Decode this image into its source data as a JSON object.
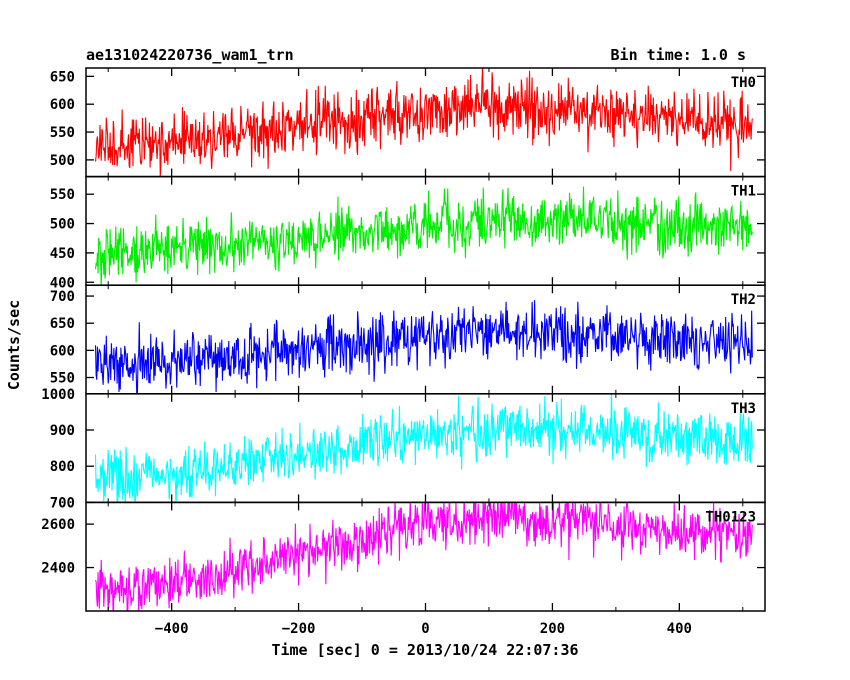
{
  "chart_data": {
    "type": "line",
    "title": "ae131024220736_wam1_trn",
    "subtitle": "Bin time: 1.0 s",
    "xlabel": "Time [sec] 0 = 2013/10/24 22:07:36",
    "ylabel": "Counts/sec",
    "xlim": [
      -535,
      535
    ],
    "x_ticks": [
      -400,
      -200,
      0,
      200,
      400
    ],
    "x_tick_labels": [
      "−400",
      "−200",
      "0",
      "200",
      "400"
    ],
    "x_range": [
      -520,
      515
    ],
    "bin_time": 1.0,
    "grid": false,
    "panels": [
      {
        "name": "TH0",
        "color": "#ff0000",
        "ylim": [
          470,
          665
        ],
        "y_ticks": [
          500,
          550,
          600,
          650
        ],
        "y_tick_labels": [
          "500",
          "550",
          "600",
          "650"
        ],
        "trend": [
          [
            -520,
            520
          ],
          [
            -400,
            535
          ],
          [
            -200,
            560
          ],
          [
            0,
            590
          ],
          [
            100,
            595
          ],
          [
            250,
            585
          ],
          [
            400,
            575
          ],
          [
            515,
            565
          ]
        ],
        "noise": 28
      },
      {
        "name": "TH1",
        "color": "#00ee00",
        "ylim": [
          395,
          580
        ],
        "y_ticks": [
          400,
          450,
          500,
          550
        ],
        "y_tick_labels": [
          "400",
          "450",
          "500",
          "550"
        ],
        "trend": [
          [
            -520,
            450
          ],
          [
            -400,
            458
          ],
          [
            -200,
            475
          ],
          [
            0,
            498
          ],
          [
            100,
            505
          ],
          [
            250,
            500
          ],
          [
            400,
            495
          ],
          [
            515,
            495
          ]
        ],
        "noise": 24
      },
      {
        "name": "TH2",
        "color": "#0000ff",
        "ylim": [
          520,
          720
        ],
        "y_ticks": [
          550,
          600,
          650,
          700
        ],
        "y_tick_labels": [
          "550",
          "600",
          "650",
          "700"
        ],
        "trend": [
          [
            -520,
            575
          ],
          [
            -400,
            580
          ],
          [
            -200,
            600
          ],
          [
            0,
            625
          ],
          [
            100,
            635
          ],
          [
            250,
            630
          ],
          [
            400,
            622
          ],
          [
            515,
            620
          ]
        ],
        "noise": 27
      },
      {
        "name": "TH3",
        "color": "#00ffff",
        "ylim": [
          700,
          1000
        ],
        "y_ticks": [
          700,
          800,
          900,
          1000
        ],
        "y_tick_labels": [
          "700",
          "800",
          "900",
          "1000"
        ],
        "trend": [
          [
            -520,
            765
          ],
          [
            -400,
            780
          ],
          [
            -200,
            835
          ],
          [
            0,
            890
          ],
          [
            100,
            905
          ],
          [
            250,
            900
          ],
          [
            400,
            880
          ],
          [
            515,
            870
          ]
        ],
        "noise": 38
      },
      {
        "name": "TH0123",
        "color": "#ff00ff",
        "ylim": [
          2200,
          2700
        ],
        "y_ticks": [
          2400,
          2600
        ],
        "y_tick_labels": [
          "2400",
          "2600"
        ],
        "trend": [
          [
            -520,
            2290
          ],
          [
            -400,
            2330
          ],
          [
            -200,
            2460
          ],
          [
            0,
            2600
          ],
          [
            100,
            2630
          ],
          [
            250,
            2610
          ],
          [
            400,
            2560
          ],
          [
            515,
            2550
          ]
        ],
        "noise": 60
      }
    ]
  }
}
